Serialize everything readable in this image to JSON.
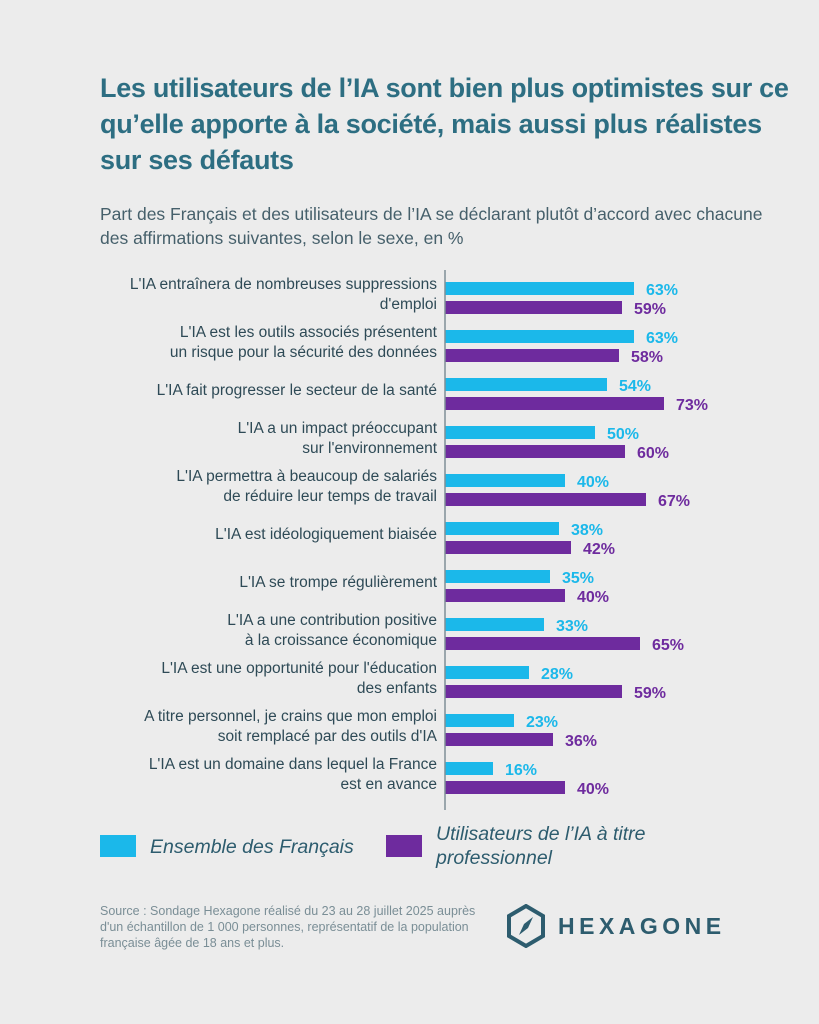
{
  "title": "Les utilisateurs de l’IA sont bien plus optimistes sur ce qu’elle apporte à la société, mais aussi plus réalistes sur ses défauts",
  "subtitle": "Part des Français et des utilisateurs de l’IA se déclarant plutôt d’accord avec chacune des affirmations suivantes, selon le sexe, en %",
  "colors": {
    "ensemble": "#1bb8ea",
    "utilisateurs": "#6e2b9e",
    "title": "#2d6e82",
    "background": "#ececec"
  },
  "chart_data": {
    "type": "bar",
    "orientation": "horizontal",
    "value_suffix": "%",
    "xlim": [
      0,
      100
    ],
    "categories": [
      [
        "L'IA entraînera de nombreuses suppressions",
        "d'emploi"
      ],
      [
        "L'IA est les outils associés présentent",
        "un risque pour la sécurité des données"
      ],
      [
        "L'IA fait progresser le secteur de la santé"
      ],
      [
        "L'IA a un impact préoccupant",
        "sur l'environnement"
      ],
      [
        "L'IA permettra à beaucoup de salariés",
        "de réduire leur temps de travail"
      ],
      [
        "L'IA est idéologiquement biaisée"
      ],
      [
        "L'IA se trompe régulièrement"
      ],
      [
        "L'IA a une contribution positive",
        "à la croissance économique"
      ],
      [
        "L'IA est une opportunité pour l'éducation",
        "des enfants"
      ],
      [
        "A titre personnel, je crains que mon emploi",
        "soit remplacé par des outils d'IA"
      ],
      [
        "L'IA est un domaine dans lequel la France",
        "est en avance"
      ]
    ],
    "series": [
      {
        "name": "Ensemble des Français",
        "values": [
          63,
          63,
          54,
          50,
          40,
          38,
          35,
          33,
          28,
          23,
          16
        ]
      },
      {
        "name": "Utilisateurs de l’IA à titre professionnel",
        "values": [
          59,
          58,
          73,
          60,
          67,
          42,
          40,
          65,
          59,
          36,
          40
        ]
      }
    ]
  },
  "legend": {
    "ensemble": [
      "Ensemble des Français"
    ],
    "utilisateurs": [
      "Utilisateurs de l’IA à titre",
      "professionnel"
    ]
  },
  "source": "Source : Sondage Hexagone réalisé du 23 au 28 juillet 2025 auprès d'un échantillon de 1 000 personnes, représentatif de la population française âgée de 18 ans et plus.",
  "logo": {
    "text": "HEXAGONE",
    "icon": "compass-hexagon-icon"
  }
}
